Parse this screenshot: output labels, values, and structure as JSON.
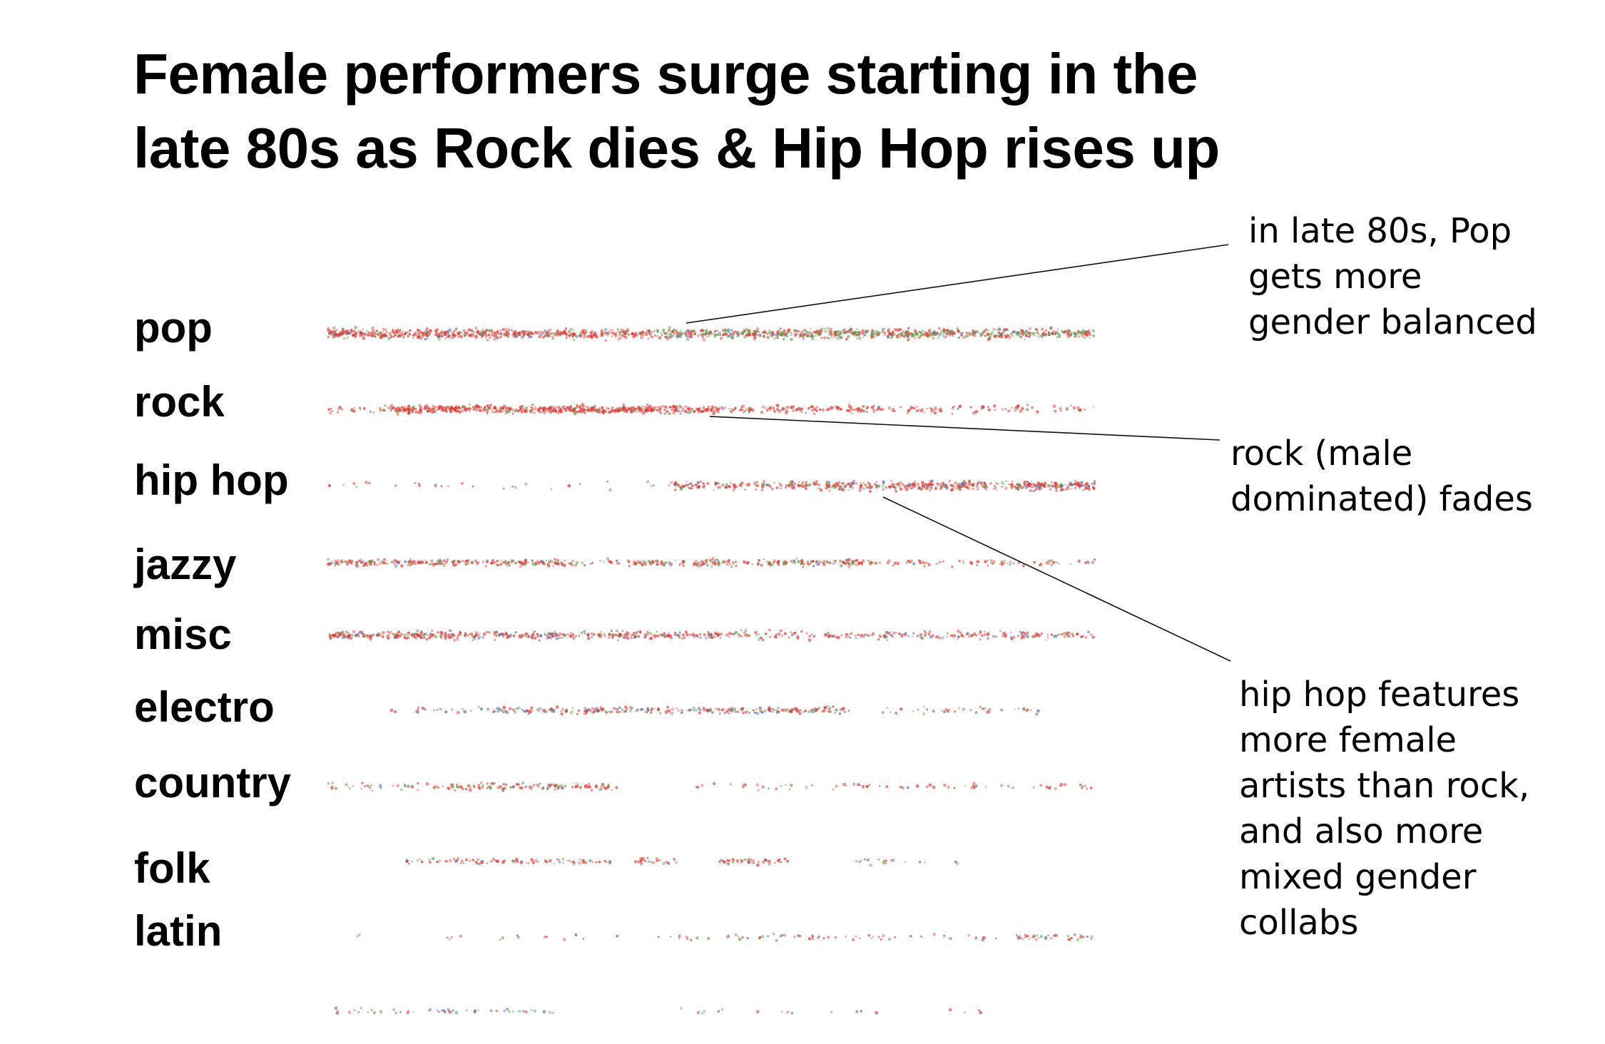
{
  "chart_data": {
    "type": "scatter",
    "title_lines": [
      "Female performers surge starting in the",
      "late 80s as Rock dies & Hip Hop rises up"
    ],
    "xlabel": "",
    "ylabel": "",
    "grid": false,
    "legend": "none",
    "colors": {
      "male": "#d63a33",
      "female": "#5f9e48",
      "mixed": "#5a6fae"
    },
    "series": [
      {
        "label": "pop",
        "segments": [
          [
            0.0,
            1.0,
            1.0
          ]
        ],
        "mix": [
          [
            0.0,
            0.42,
            0.82,
            0.1,
            0.08
          ],
          [
            0.42,
            1.0,
            0.45,
            0.42,
            0.13
          ]
        ],
        "spread": 1.0
      },
      {
        "label": "rock",
        "segments": [
          [
            0.0,
            0.08,
            0.25
          ],
          [
            0.08,
            0.5,
            1.0
          ],
          [
            0.5,
            0.8,
            0.45
          ],
          [
            0.8,
            1.0,
            0.18
          ]
        ],
        "mix": [
          [
            0.0,
            1.0,
            0.92,
            0.05,
            0.03
          ]
        ],
        "spread": 0.8
      },
      {
        "label": "hip hop",
        "segments": [
          [
            0.0,
            0.45,
            0.05
          ],
          [
            0.45,
            0.66,
            0.55
          ],
          [
            0.66,
            0.88,
            0.8
          ],
          [
            0.88,
            1.0,
            1.0
          ]
        ],
        "mix": [
          [
            0.0,
            1.0,
            0.72,
            0.12,
            0.16
          ]
        ],
        "spread": 0.9
      },
      {
        "label": "jazzy",
        "segments": [
          [
            0.0,
            0.32,
            0.6
          ],
          [
            0.32,
            0.4,
            0.2
          ],
          [
            0.4,
            0.7,
            0.55
          ],
          [
            0.7,
            0.8,
            0.22
          ],
          [
            0.8,
            1.0,
            0.18
          ]
        ],
        "mix": [
          [
            0.0,
            1.0,
            0.7,
            0.22,
            0.08
          ]
        ],
        "spread": 0.7
      },
      {
        "label": "misc",
        "segments": [
          [
            0.0,
            0.2,
            0.75
          ],
          [
            0.2,
            0.55,
            0.55
          ],
          [
            0.55,
            1.0,
            0.35
          ]
        ],
        "mix": [
          [
            0.0,
            1.0,
            0.72,
            0.1,
            0.18
          ]
        ],
        "spread": 0.8
      },
      {
        "label": "electro",
        "segments": [
          [
            0.08,
            0.22,
            0.12
          ],
          [
            0.22,
            0.68,
            0.45
          ],
          [
            0.72,
            0.93,
            0.14
          ]
        ],
        "mix": [
          [
            0.0,
            1.0,
            0.55,
            0.18,
            0.27
          ]
        ],
        "spread": 0.7
      },
      {
        "label": "country",
        "segments": [
          [
            0.0,
            0.15,
            0.18
          ],
          [
            0.15,
            0.38,
            0.4
          ],
          [
            0.48,
            1.0,
            0.1
          ]
        ],
        "mix": [
          [
            0.0,
            1.0,
            0.72,
            0.22,
            0.06
          ]
        ],
        "spread": 0.7
      },
      {
        "label": "folk",
        "segments": [
          [
            0.1,
            0.37,
            0.28
          ],
          [
            0.4,
            0.46,
            0.3
          ],
          [
            0.51,
            0.6,
            0.38
          ],
          [
            0.68,
            0.84,
            0.08
          ]
        ],
        "mix": [
          [
            0.0,
            1.0,
            0.68,
            0.14,
            0.18
          ]
        ],
        "spread": 0.6
      },
      {
        "label": "latin",
        "segments": [
          [
            0.0,
            0.4,
            0.03
          ],
          [
            0.4,
            0.9,
            0.1
          ],
          [
            0.9,
            1.0,
            0.28
          ]
        ],
        "mix": [
          [
            0.0,
            1.0,
            0.72,
            0.15,
            0.13
          ]
        ],
        "spread": 0.6
      },
      {
        "label": "",
        "segments": [
          [
            0.0,
            0.3,
            0.12
          ],
          [
            0.45,
            0.72,
            0.04
          ],
          [
            0.8,
            0.9,
            0.03
          ]
        ],
        "mix": [
          [
            0.0,
            1.0,
            0.45,
            0.2,
            0.35
          ]
        ],
        "spread": 0.6
      }
    ],
    "annotations": [
      {
        "lines": [
          "in late 80s, Pop",
          "gets more",
          "gender balanced"
        ],
        "series": "pop"
      },
      {
        "lines": [
          "rock (male",
          "dominated) fades"
        ],
        "series": "rock"
      },
      {
        "lines": [
          "hip hop features",
          "more female",
          "artists than rock,",
          "and also more",
          "mixed gender",
          "collabs"
        ],
        "series": "hip hop"
      }
    ]
  }
}
